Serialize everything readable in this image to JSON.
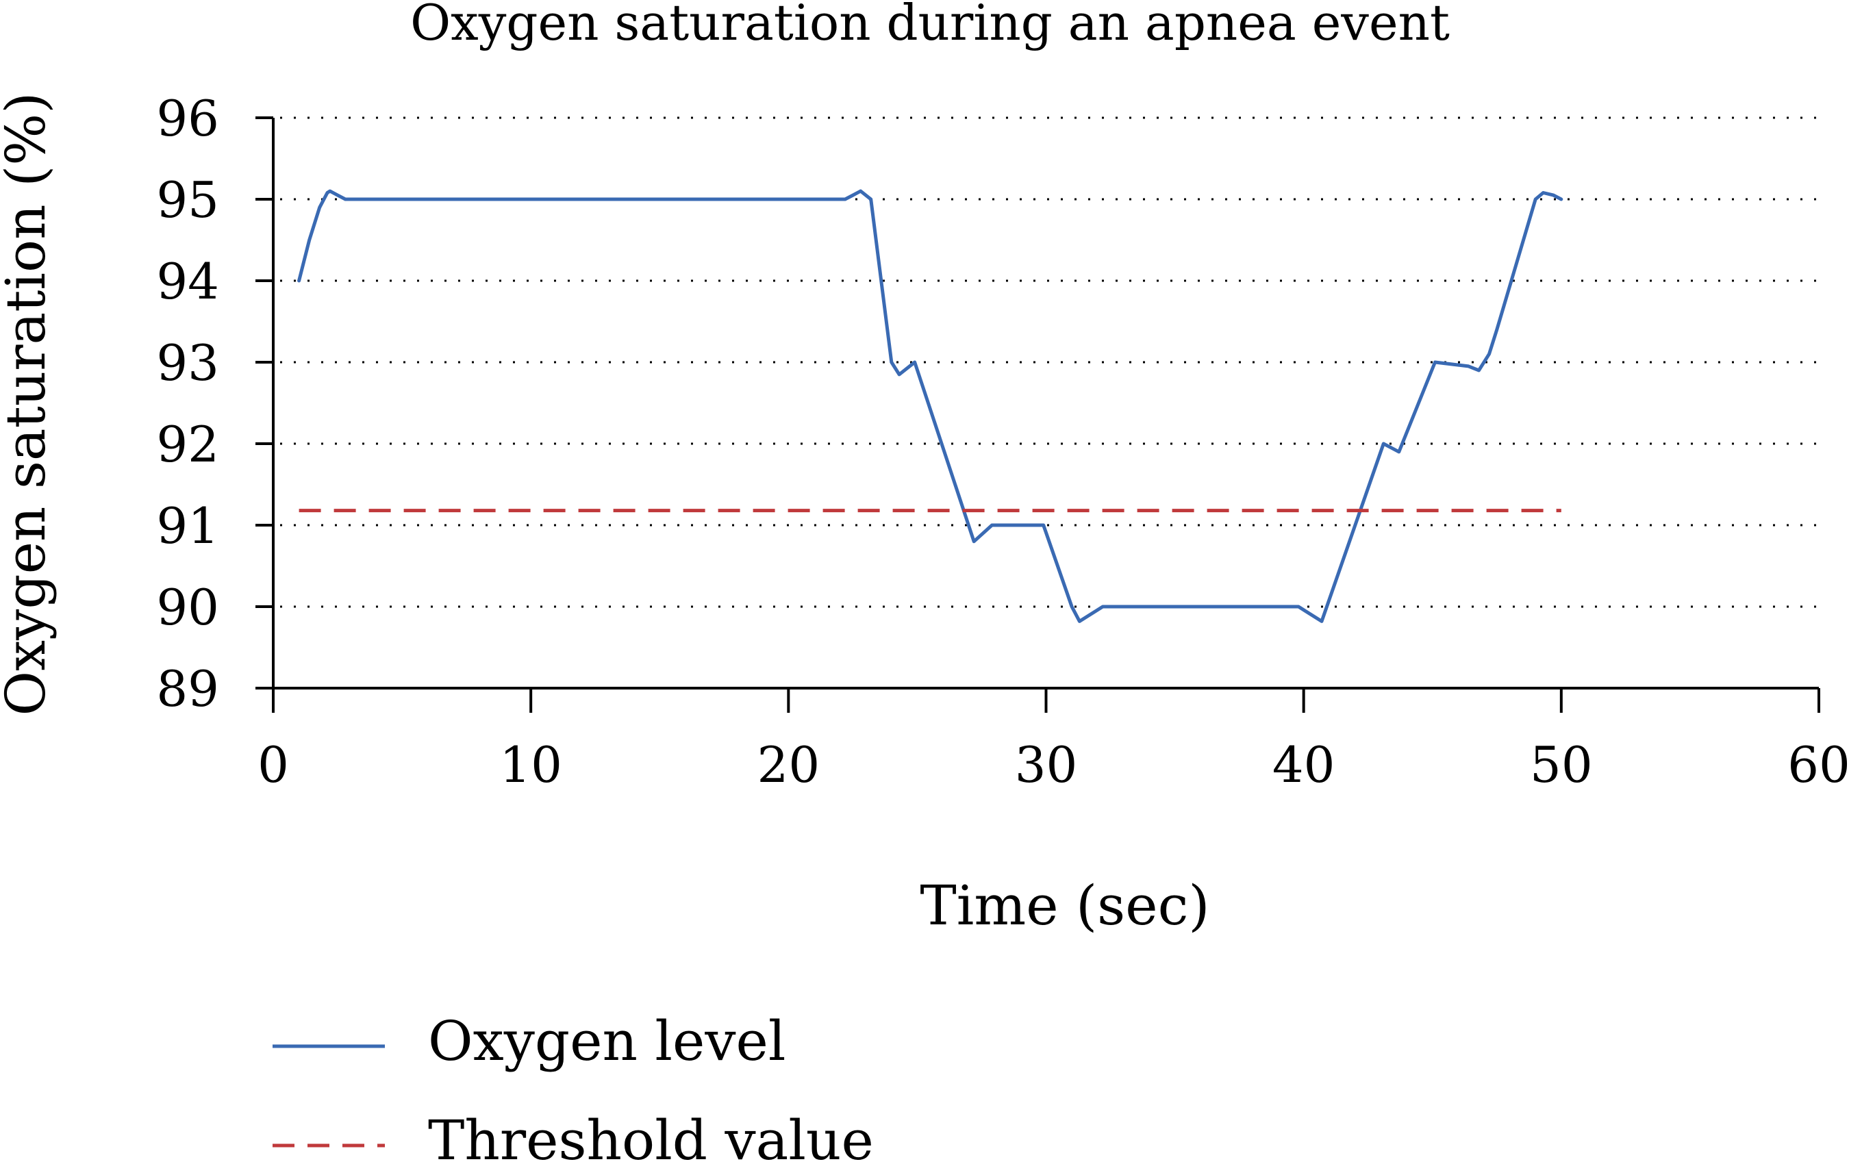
{
  "chart_data": {
    "type": "line",
    "title": "Oxygen saturation during an apnea event",
    "xlabel": "Time (sec)",
    "ylabel": "Oxygen saturation (%)",
    "xlim": [
      0,
      60
    ],
    "ylim": [
      89,
      96
    ],
    "x_ticks": [
      "0",
      "10",
      "20",
      "30",
      "40",
      "50",
      "60"
    ],
    "y_ticks": [
      "89",
      "90",
      "91",
      "92",
      "93",
      "94",
      "95",
      "96"
    ],
    "grid": "horizontal-dotted",
    "legend_position": "bottom-left",
    "series": [
      {
        "name": "Oxygen level",
        "color": "#3a6ab3",
        "style": "solid",
        "x": [
          1,
          1.4,
          1.8,
          2.1,
          2.2,
          2.5,
          2.8,
          22.2,
          22.5,
          22.8,
          23.2,
          24.0,
          24.3,
          24.9,
          27.2,
          27.9,
          29.9,
          31.0,
          31.3,
          32.2,
          39.8,
          40.7,
          43.1,
          43.7,
          45.1,
          46.4,
          46.8,
          47.2,
          47.5,
          49.0,
          49.3,
          49.7,
          50.0
        ],
        "y": [
          94.0,
          94.5,
          94.9,
          95.08,
          95.1,
          95.05,
          95.0,
          95.0,
          95.05,
          95.1,
          95.0,
          93.0,
          92.85,
          93.0,
          90.8,
          91.0,
          91.0,
          90.0,
          89.82,
          90.0,
          90.0,
          89.82,
          92.0,
          91.9,
          93.0,
          92.95,
          92.9,
          93.1,
          93.4,
          95.0,
          95.08,
          95.05,
          95.0
        ]
      },
      {
        "name": "Threshold value",
        "color": "#c0393b",
        "style": "dashed",
        "x": [
          1,
          50
        ],
        "y": [
          91.18,
          91.18
        ]
      }
    ]
  }
}
